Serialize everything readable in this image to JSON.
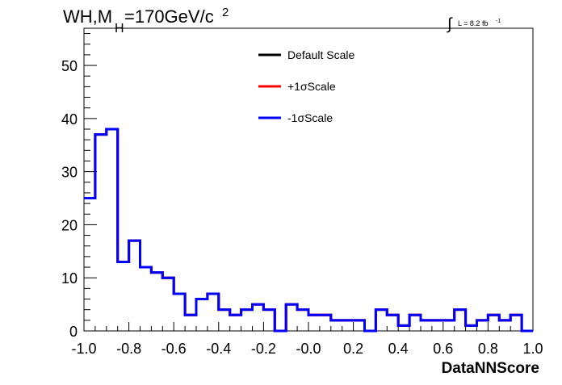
{
  "chart_data": {
    "type": "step-histogram",
    "title_main": "WH,M",
    "title_sub": "H",
    "title_rest": "=170GeV/c",
    "title_sup": "2",
    "lumi_text": "L = 8.2 fb",
    "lumi_sup": "-1",
    "xlabel": "DataNNScore",
    "xlim": [
      -1.0,
      1.0
    ],
    "ylim": [
      0,
      57
    ],
    "x_ticks": [
      "-1.0",
      "-0.8",
      "-0.6",
      "-0.4",
      "-0.2",
      "-0.0",
      "0.2",
      "0.4",
      "0.6",
      "0.8",
      "1.0"
    ],
    "y_ticks": [
      "0",
      "10",
      "20",
      "30",
      "40",
      "50"
    ],
    "bins": 40,
    "legend": [
      {
        "name": "Default Scale",
        "color": "#000000"
      },
      {
        "name": "+1σScale",
        "color": "#ff0000"
      },
      {
        "name": "-1σScale",
        "color": "#0000ff"
      }
    ],
    "series": [
      {
        "name": "Default Scale",
        "color": "#000000",
        "values": [
          25,
          37,
          38,
          13,
          17,
          12,
          11,
          10,
          7,
          3,
          6,
          7,
          4,
          3,
          4,
          5,
          4,
          0,
          5,
          4,
          3,
          3,
          2,
          2,
          2,
          0,
          4,
          3,
          1,
          3,
          2,
          2,
          2,
          4,
          1,
          2,
          3,
          2,
          3,
          0
        ]
      },
      {
        "name": "+1σScale",
        "color": "#ff0000",
        "values": [
          25,
          37,
          38,
          13,
          17,
          12,
          11,
          10,
          7,
          3,
          6,
          7,
          4,
          3,
          4,
          5,
          4,
          0,
          5,
          4,
          3,
          3,
          2,
          2,
          2,
          0,
          4,
          3,
          1,
          3,
          2,
          2,
          2,
          4,
          1,
          2,
          3,
          2,
          3,
          0
        ]
      },
      {
        "name": "-1σScale",
        "color": "#0000ff",
        "values": [
          25,
          37,
          38,
          13,
          17,
          12,
          11,
          10,
          7,
          3,
          6,
          7,
          4,
          3,
          4,
          5,
          4,
          0,
          5,
          4,
          3,
          3,
          2,
          2,
          2,
          0,
          4,
          3,
          1,
          3,
          2,
          2,
          2,
          4,
          1,
          2,
          3,
          2,
          3,
          0
        ]
      }
    ]
  }
}
